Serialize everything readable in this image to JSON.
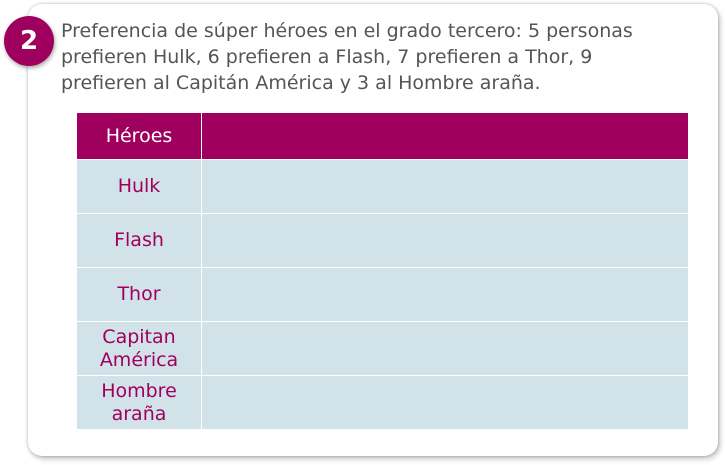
{
  "exercise": {
    "number": "2",
    "prompt_lines": [
      "Preferencia de súper héroes en el grado tercero: 5 personas",
      "prefieren Hulk, 6 prefieren a Flash, 7 prefieren a Thor,  9",
      "prefieren al Capitán América y 3 al Hombre araña."
    ]
  },
  "table": {
    "header": [
      "Héroes",
      ""
    ],
    "rows": [
      {
        "hero_lines": [
          "Hulk"
        ],
        "value": ""
      },
      {
        "hero_lines": [
          "Flash"
        ],
        "value": ""
      },
      {
        "hero_lines": [
          "Thor"
        ],
        "value": ""
      },
      {
        "hero_lines": [
          "Capitan",
          "América"
        ],
        "value": ""
      },
      {
        "hero_lines": [
          "Hombre",
          "araña"
        ],
        "value": ""
      }
    ]
  },
  "colors": {
    "accent": "#a0005d",
    "cell_background": "#d1e2e8",
    "text": "#555555"
  }
}
